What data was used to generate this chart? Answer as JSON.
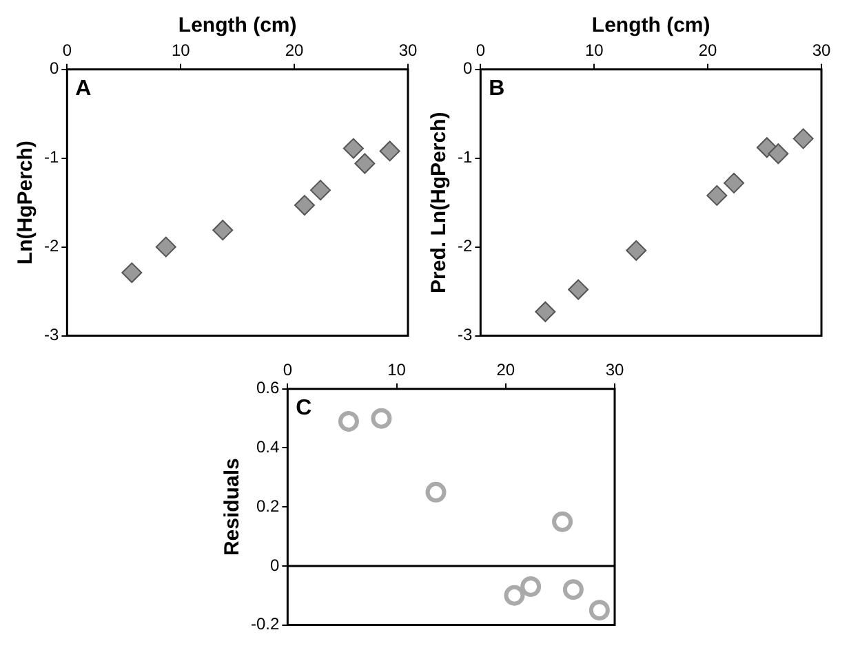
{
  "chart_data": [
    {
      "type": "scatter",
      "xlabel": "Length (cm)",
      "ylabel": "Ln(HgPerch)",
      "annotations": [
        "A"
      ],
      "marker": "diamond",
      "grid": false,
      "legend": false,
      "xlim": [
        0,
        30
      ],
      "xticks": [
        0,
        10,
        20,
        30
      ],
      "ylim": [
        -3,
        0
      ],
      "yticks": [
        -3,
        -2,
        -1,
        0
      ],
      "series": [
        {
          "color": "#999999",
          "x": [
            5.7,
            8.7,
            13.7,
            20.9,
            22.3,
            25.2,
            26.2,
            28.4
          ],
          "values": [
            -2.29,
            -2.0,
            -1.81,
            -1.53,
            -1.36,
            -0.89,
            -1.06,
            -0.92
          ]
        }
      ]
    },
    {
      "type": "scatter",
      "xlabel": "Length (cm)",
      "ylabel": "Pred. Ln(HgPerch)",
      "annotations": [
        "B"
      ],
      "marker": "diamond",
      "grid": false,
      "legend": false,
      "xlim": [
        0,
        30
      ],
      "xticks": [
        0,
        10,
        20,
        30
      ],
      "ylim": [
        -3,
        0
      ],
      "yticks": [
        -3,
        -2,
        -1,
        0
      ],
      "series": [
        {
          "color": "#999999",
          "x": [
            5.7,
            8.6,
            13.7,
            20.8,
            22.3,
            25.2,
            26.2,
            28.4
          ],
          "values": [
            -2.73,
            -2.48,
            -2.04,
            -1.42,
            -1.28,
            -0.88,
            -0.95,
            -0.78
          ]
        }
      ]
    },
    {
      "type": "scatter",
      "ylabel": "Residuals",
      "annotations": [
        "C"
      ],
      "marker": "circle",
      "grid": false,
      "legend": false,
      "xlim": [
        0,
        30
      ],
      "xticks": [
        0,
        10,
        20,
        30
      ],
      "ylim": [
        -0.2,
        0.6
      ],
      "yticks": [
        -0.2,
        0,
        0.2,
        0.4,
        0.6
      ],
      "ref_lines": [
        {
          "axis": "y",
          "value": 0,
          "color": "#000000"
        }
      ],
      "series": [
        {
          "color": "#aaaaaa",
          "x": [
            5.6,
            8.6,
            13.6,
            20.8,
            22.3,
            25.2,
            26.2,
            28.6
          ],
          "values": [
            0.49,
            0.5,
            0.25,
            -0.1,
            -0.07,
            0.15,
            -0.08,
            -0.15
          ]
        }
      ]
    }
  ]
}
